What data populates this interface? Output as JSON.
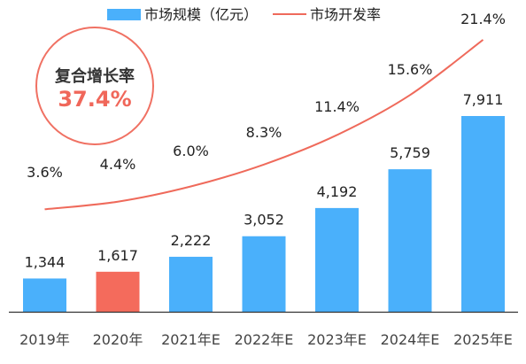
{
  "colors": {
    "bar": "#4ab0fb",
    "highlight_bar": "#f46b5c",
    "line": "#ef6a5b",
    "axis": "#333333"
  },
  "cagr": {
    "title": "复合增长率",
    "value": "37.4%"
  },
  "chart_data": {
    "type": "bar",
    "categories": [
      "2019年",
      "2020年",
      "2021年E",
      "2022年E",
      "2023年E",
      "2024年E",
      "2025年E"
    ],
    "series": [
      {
        "name": "市场规模（亿元）",
        "type": "bar",
        "values": [
          1344,
          1617,
          2222,
          3052,
          4192,
          5759,
          7911
        ],
        "labels": [
          "1,344",
          "1,617",
          "2,222",
          "3,052",
          "4,192",
          "5,759",
          "7,911"
        ],
        "highlight_index": 1
      },
      {
        "name": "市场开发率",
        "type": "line",
        "values": [
          3.6,
          4.4,
          6.0,
          8.3,
          11.4,
          15.6,
          21.4
        ],
        "labels": [
          "3.6%",
          "4.4%",
          "6.0%",
          "8.3%",
          "11.4%",
          "15.6%",
          "21.4%"
        ]
      }
    ],
    "legend": {
      "position": "top"
    },
    "grid": false
  }
}
